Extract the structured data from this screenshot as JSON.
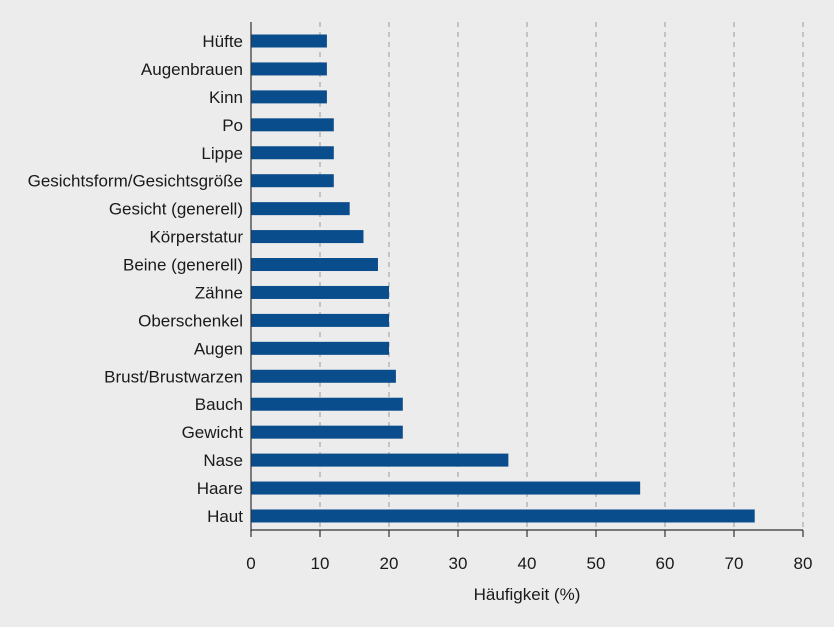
{
  "chart_data": {
    "type": "bar",
    "orientation": "horizontal",
    "categories": [
      "Hüfte",
      "Augenbrauen",
      "Kinn",
      "Po",
      "Lippe",
      "Gesichtsform/Gesichtsgröße",
      "Gesicht (generell)",
      "Körperstatur",
      "Beine (generell)",
      "Zähne",
      "Oberschenkel",
      "Augen",
      "Brust/Brustwarzen",
      "Bauch",
      "Gewicht",
      "Nase",
      "Haare",
      "Haut"
    ],
    "values": [
      11,
      11,
      11,
      12,
      12,
      12,
      14.3,
      16.3,
      18.4,
      20,
      20,
      20,
      21,
      22,
      22,
      37.3,
      56.4,
      73
    ],
    "xlabel": "Häufigkeit (%)",
    "xlim": [
      0,
      80
    ],
    "xticks": [
      0,
      10,
      20,
      30,
      40,
      50,
      60,
      70,
      80
    ],
    "grid": "vertical dashed",
    "colors": {
      "bar": "#0a4d8c",
      "grid": "#9a9a9a",
      "axis": "#333333",
      "background": "#ececec"
    }
  }
}
